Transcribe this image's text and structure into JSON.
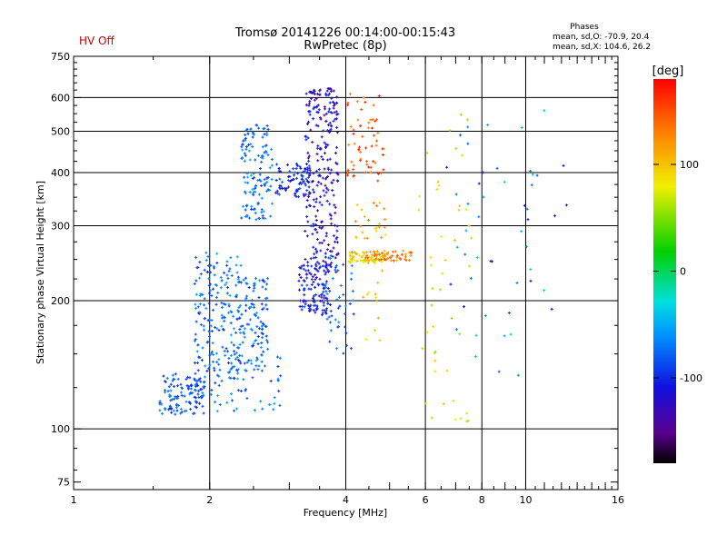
{
  "header": {
    "status_label": "HV Off",
    "title_line1": "Tromsø 20141226 00:14:00-00:15:43",
    "title_line2": "RwPretec (8p)",
    "stats_title": "Phases",
    "stats_o": "mean, sd,O: -70.9, 20.4",
    "stats_x": "mean, sd,X: 104.6, 26.2"
  },
  "colors": {
    "status": "#cc0000",
    "axes": "#000000",
    "grid": "#000000"
  },
  "chart_data": {
    "type": "scatter",
    "title": "Tromsø 20141226 00:14:00-00:15:43",
    "subtitle": "RwPretec (8p)",
    "xlabel": "Frequency [MHz]",
    "ylabel": "Stationary phase Virtual Height [km]",
    "xscale": "log2",
    "yscale": "log",
    "xlim": [
      1,
      16
    ],
    "ylim": [
      72,
      750
    ],
    "x_ticks": [
      1,
      2,
      4,
      6,
      8,
      10,
      16
    ],
    "x_tick_labels": [
      "1",
      "2",
      "4",
      "6",
      "8",
      "10",
      "16"
    ],
    "y_ticks": [
      75,
      100,
      200,
      300,
      400,
      500,
      600,
      750
    ],
    "y_tick_labels": [
      "75",
      "100",
      "200",
      "300",
      "400",
      "500",
      "600",
      "750"
    ],
    "x_grid_major": [
      2,
      4,
      6,
      8,
      10
    ],
    "y_grid_major": [
      100,
      200,
      300,
      400,
      500,
      600
    ],
    "grid": true,
    "colorbar": {
      "label": "[deg]",
      "range": [
        -180,
        180
      ],
      "ticks": [
        100,
        0,
        -100
      ],
      "tick_labels": [
        "100",
        "0",
        "-100"
      ],
      "colormap": "rainbow"
    },
    "clusters": [
      {
        "x": [
          1.55,
          1.95
        ],
        "y": [
          108,
          135
        ],
        "phase": -85,
        "n": 120
      },
      {
        "x": [
          1.85,
          2.35
        ],
        "y": [
          130,
          260
        ],
        "phase": -75,
        "n": 180
      },
      {
        "x": [
          2.3,
          2.7
        ],
        "y": [
          140,
          230
        ],
        "phase": -78,
        "n": 110
      },
      {
        "x": [
          2.35,
          2.75
        ],
        "y": [
          310,
          520
        ],
        "phase": -72,
        "n": 130
      },
      {
        "x": [
          2.0,
          2.9
        ],
        "y": [
          110,
          150
        ],
        "phase": -70,
        "n": 60
      },
      {
        "x": [
          2.8,
          3.4
        ],
        "y": [
          350,
          420
        ],
        "phase": -100,
        "n": 90
      },
      {
        "x": [
          3.25,
          3.85
        ],
        "y": [
          230,
          640
        ],
        "phase": -120,
        "n": 260
      },
      {
        "x": [
          3.15,
          3.7
        ],
        "y": [
          185,
          245
        ],
        "phase": -110,
        "n": 110
      },
      {
        "x": [
          3.6,
          4.2
        ],
        "y": [
          150,
          260
        ],
        "phase": -80,
        "n": 50
      },
      {
        "x": [
          4.0,
          4.9
        ],
        "y": [
          245,
          260
        ],
        "phase": 90,
        "n": 70
      },
      {
        "x": [
          4.4,
          5.6
        ],
        "y": [
          248,
          262
        ],
        "phase": 130,
        "n": 50
      },
      {
        "x": [
          4.0,
          4.9
        ],
        "y": [
          380,
          620
        ],
        "phase": 150,
        "n": 60
      },
      {
        "x": [
          4.2,
          4.9
        ],
        "y": [
          280,
          340
        ],
        "phase": 110,
        "n": 25
      },
      {
        "x": [
          4.3,
          4.9
        ],
        "y": [
          160,
          240
        ],
        "phase": 100,
        "n": 12
      },
      {
        "x": [
          5.8,
          7.6
        ],
        "y": [
          100,
          620
        ],
        "phase": 80,
        "n": 45
      },
      {
        "x": [
          7.0,
          11.0
        ],
        "y": [
          120,
          620
        ],
        "phase": -60,
        "n": 35
      },
      {
        "x": [
          6.5,
          12.5
        ],
        "y": [
          180,
          420
        ],
        "phase": -110,
        "n": 15
      }
    ]
  }
}
